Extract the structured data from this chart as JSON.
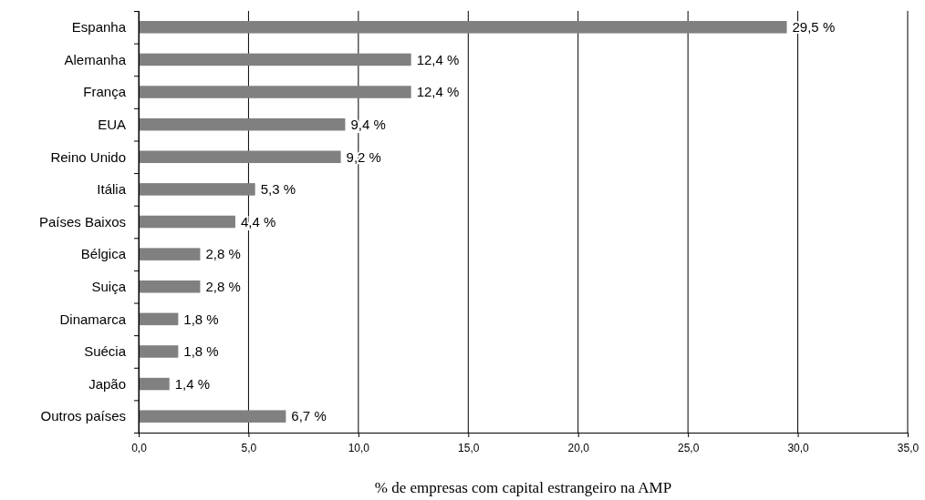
{
  "chart_data": {
    "type": "bar",
    "orientation": "horizontal",
    "xlabel": "% de empresas com capital estrangeiro na AMP",
    "categories": [
      "Espanha",
      "Alemanha",
      "França",
      "EUA",
      "Reino Unido",
      "Itália",
      "Países Baixos",
      "Bélgica",
      "Suiça",
      "Dinamarca",
      "Suécia",
      "Japão",
      "Outros países"
    ],
    "values": [
      29.5,
      12.4,
      12.4,
      9.4,
      9.2,
      5.3,
      4.4,
      2.8,
      2.8,
      1.8,
      1.8,
      1.4,
      6.7
    ],
    "value_labels": [
      "29,5 %",
      "12,4 %",
      "12,4 %",
      "9,4 %",
      "9,2 %",
      "5,3 %",
      "4,4 %",
      "2,8 %",
      "2,8 %",
      "1,8 %",
      "1,8 %",
      "1,4 %",
      "6,7 %"
    ],
    "color": "#808080",
    "xlim": [
      0,
      35
    ],
    "xticks": [
      {
        "value": 0,
        "label": "0,0"
      },
      {
        "value": 5,
        "label": "5,0"
      },
      {
        "value": 10,
        "label": "10,0"
      },
      {
        "value": 15,
        "label": "15,0"
      },
      {
        "value": 20,
        "label": "20,0"
      },
      {
        "value": 25,
        "label": "25,0"
      },
      {
        "value": 30,
        "label": "30,0"
      },
      {
        "value": 35,
        "label": "35,0"
      }
    ],
    "grid": "x"
  }
}
